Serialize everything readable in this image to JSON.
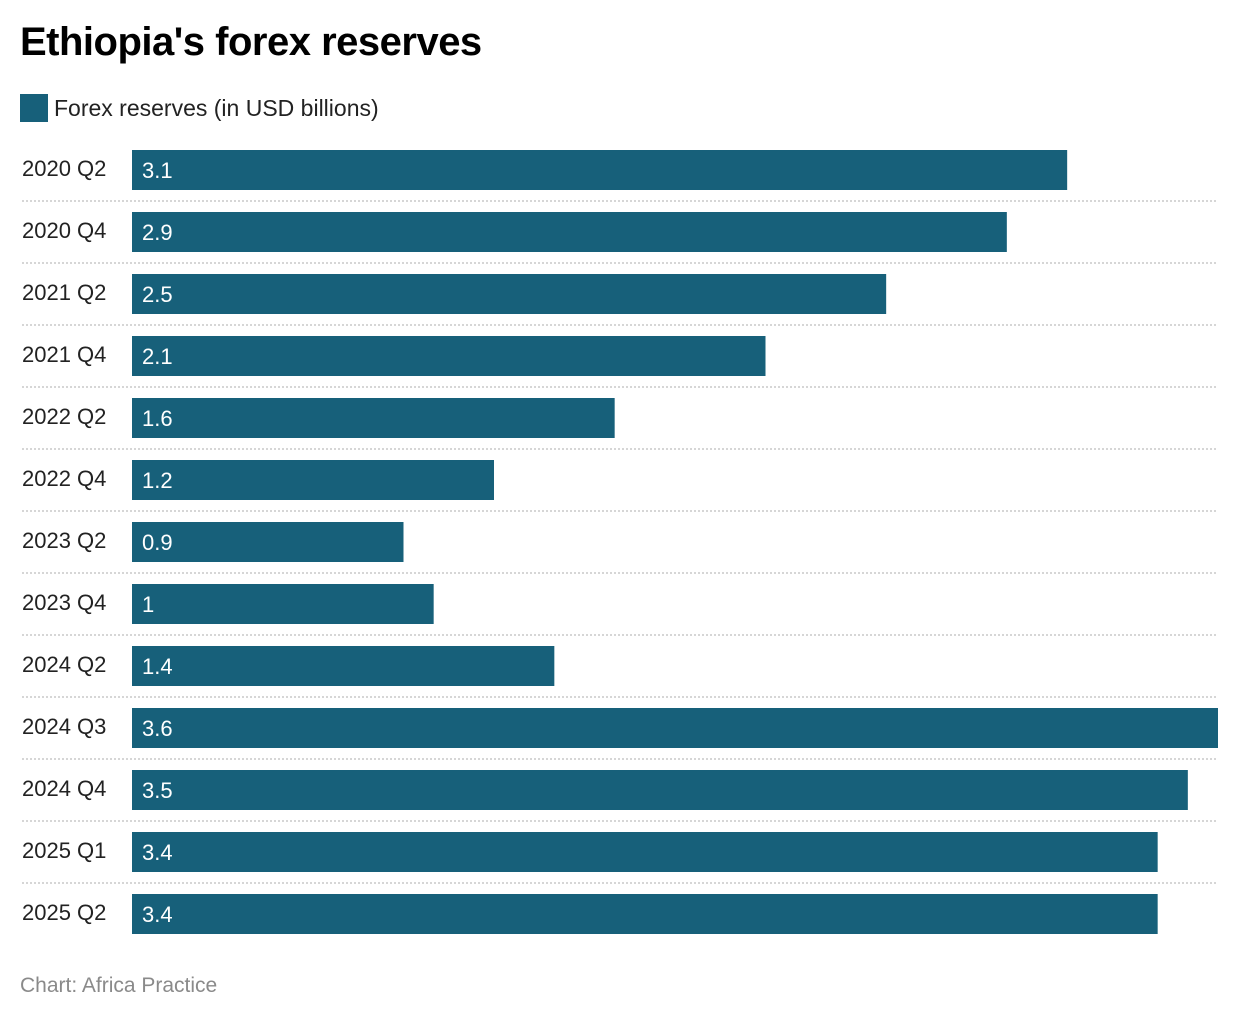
{
  "title": "Ethiopia's forex reserves",
  "source": "Chart: Africa Practice",
  "colors": {
    "bar": "#17607a",
    "label_inside": "#ffffff",
    "separator": "#c8c8c8"
  },
  "chart_data": {
    "type": "bar",
    "orientation": "horizontal",
    "title": "Ethiopia's forex reserves",
    "legend": [
      {
        "name": "Forex reserves (in USD billions)",
        "color": "#17607a"
      }
    ],
    "legend_placement": "top-left",
    "categories": [
      "2020 Q2",
      "2020 Q4",
      "2021 Q2",
      "2021 Q4",
      "2022 Q2",
      "2022 Q4",
      "2023 Q2",
      "2023 Q4",
      "2024 Q2",
      "2024 Q3",
      "2024 Q4",
      "2025 Q1",
      "2025 Q2"
    ],
    "series": [
      {
        "name": "Forex reserves (in USD billions)",
        "values": [
          3.1,
          2.9,
          2.5,
          2.1,
          1.6,
          1.2,
          0.9,
          1,
          1.4,
          3.6,
          3.5,
          3.4,
          3.4
        ]
      }
    ],
    "data_labels": [
      "3.1",
      "2.9",
      "2.5",
      "2.1",
      "1.6",
      "1.2",
      "0.9",
      "1",
      "1.4",
      "3.6",
      "3.5",
      "3.4",
      "3.4"
    ],
    "xlim": [
      0,
      3.6
    ],
    "grid": false
  }
}
